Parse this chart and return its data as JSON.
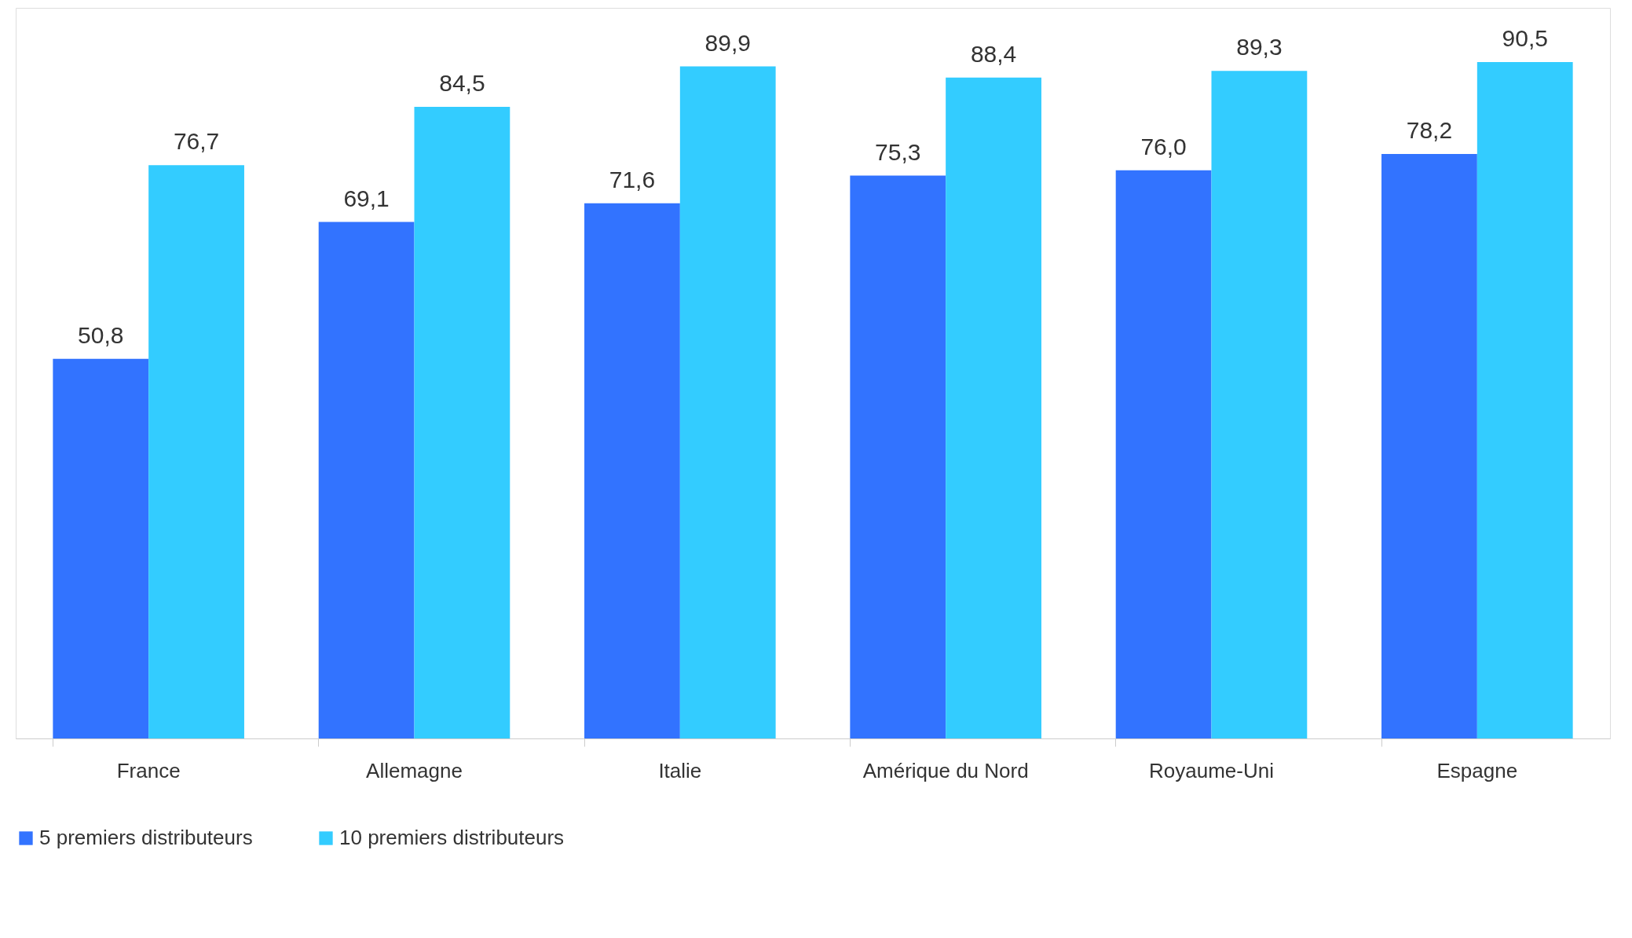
{
  "chart_data": {
    "type": "bar",
    "categories": [
      "France",
      "Allemagne",
      "Italie",
      "Amérique du Nord",
      "Royaume-Uni",
      "Espagne"
    ],
    "series": [
      {
        "name": "5 premiers distributeurs",
        "color": "#3273ff",
        "values": [
          50.8,
          69.1,
          71.6,
          75.3,
          76.0,
          78.2
        ],
        "value_labels": [
          "50,8",
          "69,1",
          "71,6",
          "75,3",
          "76,0",
          "78,2"
        ]
      },
      {
        "name": "10 premiers distributeurs",
        "color": "#33ccff",
        "values": [
          76.7,
          84.5,
          89.9,
          88.4,
          89.3,
          90.5
        ],
        "value_labels": [
          "76,7",
          "84,5",
          "89,9",
          "88,4",
          "89,3",
          "90,5"
        ]
      }
    ],
    "legend": "bottom",
    "grid": false
  }
}
